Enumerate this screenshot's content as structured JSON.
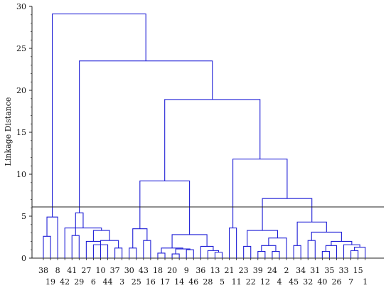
{
  "chart_data": {
    "type": "dendrogram",
    "title": "",
    "xlabel": "",
    "ylabel": "Linkage Distance",
    "ylim": [
      0,
      30
    ],
    "yticks": [
      "0",
      "5",
      "10",
      "15",
      "20",
      "25",
      "30"
    ],
    "cut_line": 6.1,
    "colors": {
      "branches": "#1f1fd6",
      "axis": "#222222",
      "cut_line": "#222222"
    },
    "leaves": [
      "38",
      "19",
      "8",
      "42",
      "41",
      "29",
      "27",
      "6",
      "10",
      "44",
      "37",
      "3",
      "30",
      "25",
      "43",
      "16",
      "18",
      "17",
      "20",
      "14",
      "9",
      "46",
      "36",
      "28",
      "13",
      "5",
      "21",
      "11",
      "23",
      "22",
      "39",
      "12",
      "24",
      "4",
      "2",
      "45",
      "34",
      "32",
      "31",
      "40",
      "35",
      "26",
      "33",
      "7",
      "15",
      "1"
    ],
    "leaf_label_rows": {
      "top": [
        "38",
        "8",
        "41",
        "27",
        "10",
        "37",
        "30",
        "43",
        "18",
        "20",
        "9",
        "36",
        "13",
        "21",
        "23",
        "39",
        "24",
        "2",
        "34",
        "31",
        "35",
        "33",
        "15"
      ],
      "bottom": [
        "19",
        "42",
        "29",
        "6",
        "44",
        "3",
        "25",
        "16",
        "17",
        "14",
        "46",
        "28",
        "5",
        "11",
        "22",
        "12",
        "4",
        "45",
        "32",
        "40",
        "26",
        "7",
        "1"
      ]
    },
    "merges": [
      {
        "id": "c1",
        "children": [
          "38",
          "19"
        ],
        "height": 2.6
      },
      {
        "id": "c2",
        "children": [
          "c1",
          "8"
        ],
        "height": 4.9
      },
      {
        "id": "c3",
        "children": [
          "41",
          "29"
        ],
        "height": 2.7
      },
      {
        "id": "c4",
        "children": [
          "6",
          "44"
        ],
        "height": 1.6
      },
      {
        "id": "c5",
        "children": [
          "27",
          "c4"
        ],
        "height": 2.0
      },
      {
        "id": "c6",
        "children": [
          "37",
          "3"
        ],
        "height": 1.2
      },
      {
        "id": "c7",
        "children": [
          "10",
          "c6"
        ],
        "height": 2.1
      },
      {
        "id": "c8",
        "children": [
          "c5",
          "c7"
        ],
        "height": 3.3
      },
      {
        "id": "c9",
        "children": [
          "42",
          "c8"
        ],
        "height": 3.6
      },
      {
        "id": "c10",
        "children": [
          "c3",
          "c9"
        ],
        "height": 5.4
      },
      {
        "id": "c11",
        "children": [
          "30",
          "25"
        ],
        "height": 1.2
      },
      {
        "id": "c12",
        "children": [
          "43",
          "16"
        ],
        "height": 2.1
      },
      {
        "id": "c13",
        "children": [
          "c11",
          "c12"
        ],
        "height": 3.5
      },
      {
        "id": "c14",
        "children": [
          "18",
          "17"
        ],
        "height": 0.6
      },
      {
        "id": "c15",
        "children": [
          "20",
          "14"
        ],
        "height": 0.5
      },
      {
        "id": "c16",
        "children": [
          "9",
          "46"
        ],
        "height": 1.0
      },
      {
        "id": "c17",
        "children": [
          "c15",
          "c16"
        ],
        "height": 1.1
      },
      {
        "id": "c18",
        "children": [
          "c14",
          "c17"
        ],
        "height": 1.2
      },
      {
        "id": "c19",
        "children": [
          "13",
          "5"
        ],
        "height": 0.7
      },
      {
        "id": "c20",
        "children": [
          "28",
          "c19"
        ],
        "height": 0.9
      },
      {
        "id": "c21",
        "children": [
          "36",
          "c20"
        ],
        "height": 1.4
      },
      {
        "id": "c22",
        "children": [
          "c18",
          "c21"
        ],
        "height": 2.8
      },
      {
        "id": "c23",
        "children": [
          "c13",
          "c22"
        ],
        "height": 9.2
      },
      {
        "id": "c24",
        "children": [
          "21",
          "11"
        ],
        "height": 3.6
      },
      {
        "id": "c25",
        "children": [
          "23",
          "22"
        ],
        "height": 1.4
      },
      {
        "id": "c26",
        "children": [
          "39",
          "12"
        ],
        "height": 0.8
      },
      {
        "id": "c27",
        "children": [
          "24",
          "4"
        ],
        "height": 0.8
      },
      {
        "id": "c28",
        "children": [
          "c26",
          "c27"
        ],
        "height": 1.5
      },
      {
        "id": "c29",
        "children": [
          "c28",
          "2"
        ],
        "height": 2.4
      },
      {
        "id": "c30",
        "children": [
          "c25",
          "c29"
        ],
        "height": 3.3
      },
      {
        "id": "c31",
        "children": [
          "45",
          "34"
        ],
        "height": 1.5
      },
      {
        "id": "c32",
        "children": [
          "32",
          "31"
        ],
        "height": 2.1
      },
      {
        "id": "c33",
        "children": [
          "40",
          "35"
        ],
        "height": 0.8
      },
      {
        "id": "c34",
        "children": [
          "c33",
          "26"
        ],
        "height": 1.5
      },
      {
        "id": "c35",
        "children": [
          "7",
          "15"
        ],
        "height": 0.9
      },
      {
        "id": "c36",
        "children": [
          "c35",
          "1"
        ],
        "height": 1.3
      },
      {
        "id": "c37",
        "children": [
          "33",
          "c36"
        ],
        "height": 1.6
      },
      {
        "id": "c38",
        "children": [
          "c34",
          "c37"
        ],
        "height": 2.0
      },
      {
        "id": "c39",
        "children": [
          "c32",
          "c38"
        ],
        "height": 3.1
      },
      {
        "id": "c40",
        "children": [
          "c31",
          "c39"
        ],
        "height": 4.3
      },
      {
        "id": "c41",
        "children": [
          "c30",
          "c40"
        ],
        "height": 7.1
      },
      {
        "id": "c42",
        "children": [
          "c24",
          "c41"
        ],
        "height": 11.8
      },
      {
        "id": "c43",
        "children": [
          "c23",
          "c42"
        ],
        "height": 18.9
      },
      {
        "id": "c44",
        "children": [
          "c10",
          "c43"
        ],
        "height": 23.5
      },
      {
        "id": "c45",
        "children": [
          "c2",
          "c44"
        ],
        "height": 29.1
      }
    ]
  }
}
